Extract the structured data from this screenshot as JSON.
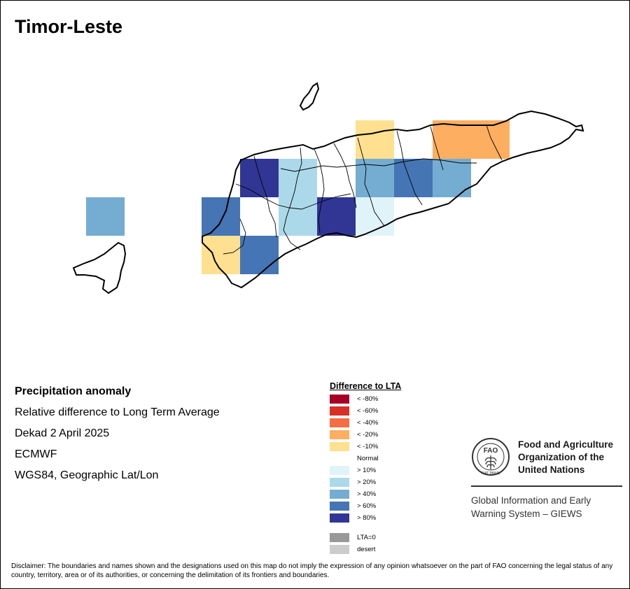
{
  "title": "Timor-Leste",
  "map_info": {
    "product": "Precipitation anomaly",
    "description": "Relative difference to Long Term Average",
    "period": "Dekad 2 April 2025",
    "source": "ECMWF",
    "projection": "WGS84, Geographic Lat/Lon"
  },
  "legend": {
    "title": "Difference to LTA",
    "items": [
      {
        "label": "< -80%",
        "color": "#a50026"
      },
      {
        "label": "< -60%",
        "color": "#d73027"
      },
      {
        "label": "< -40%",
        "color": "#f46d43"
      },
      {
        "label": "< -20%",
        "color": "#fdae61"
      },
      {
        "label": "< -10%",
        "color": "#fee090"
      },
      {
        "label": "Normal",
        "color": "#ffffff"
      },
      {
        "label": "> 10%",
        "color": "#e0f3f8"
      },
      {
        "label": "> 20%",
        "color": "#abd9e9"
      },
      {
        "label": "> 40%",
        "color": "#74add1"
      },
      {
        "label": "> 60%",
        "color": "#4575b4"
      },
      {
        "label": "> 80%",
        "color": "#313695"
      },
      {
        "label": "LTA=0",
        "color": "#999999"
      },
      {
        "label": "desert",
        "color": "#cccccc"
      }
    ]
  },
  "anomaly_grid": [
    {
      "row": 0,
      "col": 4,
      "class": "< -10%"
    },
    {
      "row": 0,
      "col": 6,
      "class": "< -20%"
    },
    {
      "row": 0,
      "col": 7,
      "class": "< -20%"
    },
    {
      "row": 1,
      "col": 1,
      "class": "> 80%"
    },
    {
      "row": 1,
      "col": 2,
      "class": "> 20%"
    },
    {
      "row": 1,
      "col": 4,
      "class": "> 40%"
    },
    {
      "row": 1,
      "col": 5,
      "class": "> 60%"
    },
    {
      "row": 1,
      "col": 6,
      "class": "> 40%"
    },
    {
      "row": 2,
      "col": 0,
      "class": "> 60%"
    },
    {
      "row": 2,
      "col": 2,
      "class": "> 20%"
    },
    {
      "row": 2,
      "col": 3,
      "class": "> 80%"
    },
    {
      "row": 2,
      "col": 4,
      "class": "> 10%"
    },
    {
      "row": 3,
      "col": 0,
      "class": "< -10%"
    },
    {
      "row": 3,
      "col": 1,
      "class": "> 60%"
    },
    {
      "row": 2,
      "col": -3,
      "class": "> 40%"
    }
  ],
  "organization": {
    "logo_text": "FAO",
    "logo_motto": "FIAT PANIS",
    "name": "Food and Agriculture Organization of the United Nations",
    "system": "Global Information and Early Warning System – GIEWS"
  },
  "disclaimer": "Disclaimer: The boundaries and names shown and the designations used on this map do not imply the expression of any opinion whatsoever on the part of FAO concerning the legal status of any country, territory, area or of its authorities, or concerning the delimitation of its frontiers and boundaries."
}
